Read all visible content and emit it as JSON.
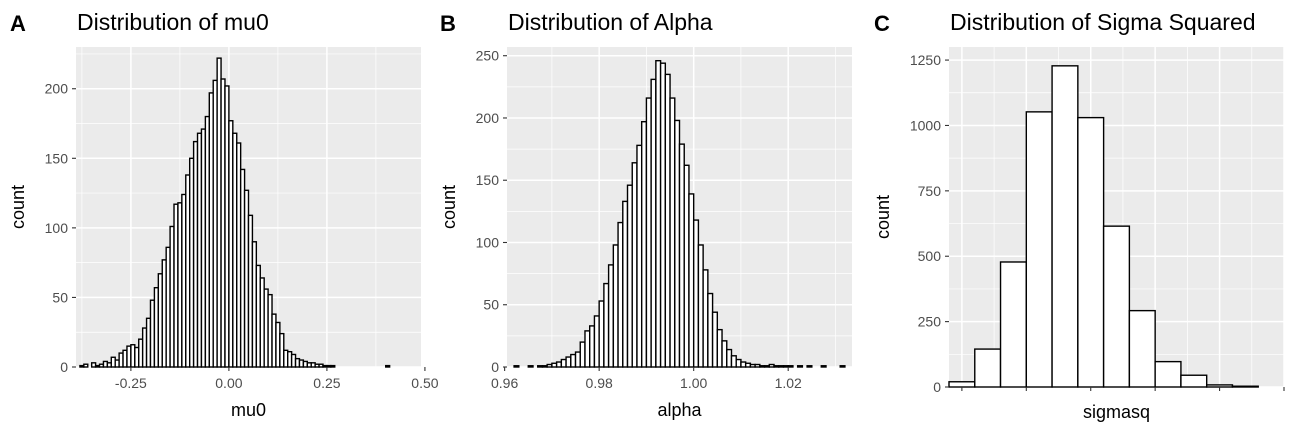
{
  "figure": {
    "panels": [
      {
        "letter": "A",
        "title": "Distribution of mu0"
      },
      {
        "letter": "B",
        "title": "Distribution of Alpha"
      },
      {
        "letter": "C",
        "title": "Distribution of Sigma Squared"
      }
    ]
  },
  "chart_data": [
    {
      "type": "bar",
      "title": "Distribution of mu0",
      "xlabel": "mu0",
      "ylabel": "count",
      "xlim": [
        -0.39,
        0.49
      ],
      "ylim": [
        0,
        230
      ],
      "xticks": [
        -0.25,
        0.0,
        0.25,
        0.5
      ],
      "xtick_labels": [
        "-0.25",
        "0.00",
        "0.25",
        "0.50"
      ],
      "yticks": [
        0,
        50,
        100,
        150,
        200
      ],
      "ytick_labels": [
        "0",
        "50",
        "100",
        "150",
        "200"
      ],
      "bin_start": -0.38,
      "bin_width": 0.01,
      "values": [
        1,
        2,
        0,
        3,
        1,
        2,
        4,
        3,
        7,
        5,
        10,
        12,
        15,
        16,
        14,
        20,
        28,
        35,
        48,
        57,
        67,
        77,
        86,
        101,
        117,
        118,
        124,
        138,
        150,
        162,
        168,
        171,
        180,
        197,
        206,
        222,
        207,
        202,
        177,
        168,
        161,
        142,
        127,
        109,
        90,
        73,
        64,
        56,
        52,
        38,
        32,
        24,
        12,
        11,
        9,
        6,
        5,
        4,
        3,
        3,
        2,
        2,
        1,
        1,
        1,
        0,
        0,
        0,
        0,
        0,
        0,
        0,
        0,
        0,
        0,
        0,
        0,
        0,
        1
      ],
      "grid": true
    },
    {
      "type": "bar",
      "title": "Distribution of Alpha",
      "xlabel": "alpha",
      "ylabel": "count",
      "xlim": [
        0.9605,
        1.0335
      ],
      "ylim": [
        0,
        257
      ],
      "xticks": [
        0.96,
        0.98,
        1.0,
        1.02
      ],
      "xtick_labels": [
        "0.96",
        "0.98",
        "1.00",
        "1.02"
      ],
      "yticks": [
        0,
        50,
        100,
        150,
        200,
        250
      ],
      "ytick_labels": [
        "0",
        "50",
        "100",
        "150",
        "200",
        "250"
      ],
      "bin_start": 0.962,
      "bin_width": 0.001,
      "values": [
        1,
        0,
        0,
        1,
        0,
        1,
        1,
        2,
        3,
        4,
        6,
        8,
        10,
        12,
        20,
        29,
        33,
        41,
        53,
        67,
        82,
        98,
        116,
        133,
        146,
        164,
        178,
        197,
        216,
        231,
        246,
        244,
        235,
        216,
        198,
        179,
        162,
        139,
        118,
        98,
        78,
        59,
        44,
        30,
        21,
        14,
        9,
        6,
        4,
        3,
        2,
        2,
        1,
        1,
        2,
        1,
        1,
        1,
        1,
        0,
        1,
        0,
        1,
        0,
        0,
        1,
        0,
        0,
        0,
        1
      ],
      "grid": true
    },
    {
      "type": "bar",
      "title": "Distribution of Sigma Squared",
      "xlabel": "sigmasq",
      "ylabel": "count",
      "xlim": [
        0.5,
        13.5
      ],
      "ylim": [
        0,
        1300
      ],
      "yticks": [
        0,
        250,
        500,
        750,
        1000,
        1250
      ],
      "ytick_labels": [
        "0",
        "250",
        "500",
        "750",
        "1000",
        "1250"
      ],
      "xticks": [
        1,
        3.5,
        6,
        8.5,
        11,
        13.5
      ],
      "xtick_labels": [
        "",
        "",
        "",
        "",
        "",
        ""
      ],
      "bin_start": 0.5,
      "bin_width": 1,
      "values": [
        20,
        145,
        478,
        1052,
        1228,
        1030,
        615,
        292,
        97,
        45,
        8,
        3
      ],
      "grid": true
    }
  ]
}
